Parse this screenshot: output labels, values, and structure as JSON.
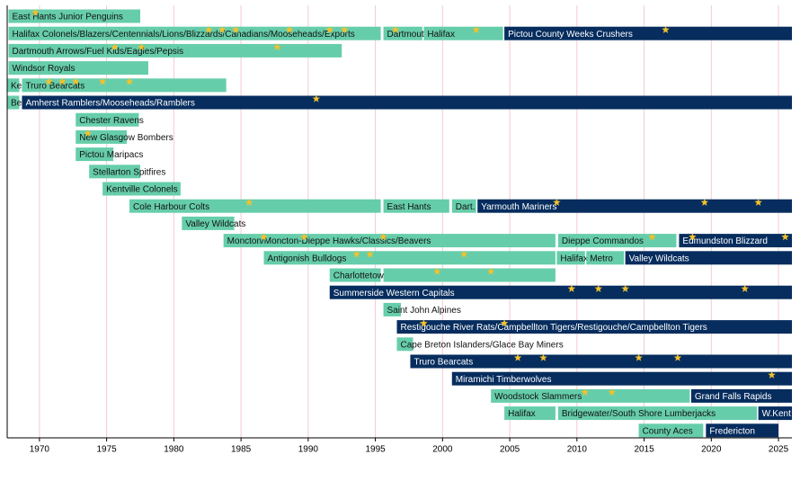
{
  "chart_data": {
    "type": "timeline",
    "xlim": [
      1967.6,
      2026
    ],
    "xticks": [
      1970,
      1975,
      1980,
      1985,
      1990,
      1995,
      2000,
      2005,
      2010,
      2015,
      2020,
      2025
    ],
    "grid": true,
    "star_color": "#f2c12e",
    "rows": [
      {
        "bars": [
          {
            "label": "East Hants Junior Penguins",
            "start": 1967.7,
            "end": 1977.5,
            "color": "#66cdaa",
            "stars": [
              1969.7
            ]
          }
        ]
      },
      {
        "bars": [
          {
            "label": "Halifax Colonels/Blazers/Centennials/Lions/Blizzards/Canadians/Mooseheads/Exports",
            "start": 1967.7,
            "end": 1995.4,
            "color": "#66cdaa",
            "stars": [
              1982.6,
              1983.6,
              1984.6,
              1988.6,
              1991.6,
              1992.7
            ]
          },
          {
            "label": "Dartmouth",
            "start": 1995.6,
            "end": 1998.5,
            "color": "#66cdaa",
            "stars": [
              1996.5
            ]
          },
          {
            "label": "Halifax",
            "start": 1998.6,
            "end": 2004.5,
            "color": "#66cdaa",
            "stars": [
              2002.5
            ]
          },
          {
            "label": "Pictou County Weeks Crushers",
            "start": 2004.6,
            "end": 2026,
            "color": "#062d5e",
            "stars": [
              2016.6
            ]
          }
        ]
      },
      {
        "bars": [
          {
            "label": "Dartmouth Arrows/Fuel Kids/Eagles/Pepsis",
            "start": 1967.7,
            "end": 1992.5,
            "color": "#66cdaa",
            "stars": [
              1975.6,
              1977.6,
              1987.7
            ]
          }
        ]
      },
      {
        "bars": [
          {
            "label": "Windsor Royals",
            "start": 1967.7,
            "end": 1978.1,
            "color": "#66cdaa",
            "stars": []
          }
        ]
      },
      {
        "bars": [
          {
            "label": "Ken.",
            "start": 1967.6,
            "end": 1968.5,
            "color": "#66cdaa",
            "stars": []
          },
          {
            "label": "Truro Bearcats",
            "start": 1968.7,
            "end": 1983.9,
            "color": "#66cdaa",
            "stars": [
              1970.7,
              1971.7,
              1972.7,
              1974.7,
              1976.7
            ]
          }
        ]
      },
      {
        "bars": [
          {
            "label": "Ber.",
            "start": 1967.6,
            "end": 1968.5,
            "color": "#66cdaa",
            "stars": []
          },
          {
            "label": "Amherst Ramblers/Mooseheads/Ramblers",
            "start": 1968.7,
            "end": 2026,
            "color": "#062d5e",
            "stars": [
              1990.6
            ]
          }
        ]
      },
      {
        "bars": [
          {
            "label": "Chester Ravens",
            "start": 1972.7,
            "end": 1977.4,
            "color": "#66cdaa",
            "stars": []
          }
        ]
      },
      {
        "bars": [
          {
            "label": "New Glasgow Bombers",
            "start": 1972.7,
            "end": 1976.5,
            "color": "#66cdaa",
            "stars": [
              1973.6
            ]
          }
        ]
      },
      {
        "bars": [
          {
            "label": "Pictou Maripacs",
            "start": 1972.7,
            "end": 1975.5,
            "color": "#66cdaa",
            "stars": []
          }
        ]
      },
      {
        "bars": [
          {
            "label": "Stellarton Spitfires",
            "start": 1973.7,
            "end": 1977.5,
            "color": "#66cdaa",
            "stars": []
          }
        ]
      },
      {
        "bars": [
          {
            "label": "Kentville Colonels",
            "start": 1974.7,
            "end": 1980.5,
            "color": "#66cdaa",
            "stars": []
          }
        ]
      },
      {
        "bars": [
          {
            "label": "Cole Harbour Colts",
            "start": 1976.7,
            "end": 1995.4,
            "color": "#66cdaa",
            "stars": [
              1985.6
            ]
          },
          {
            "label": "East Hants",
            "start": 1995.6,
            "end": 2000.5,
            "color": "#66cdaa",
            "stars": []
          },
          {
            "label": "Dart.",
            "start": 2000.7,
            "end": 2002.5,
            "color": "#66cdaa",
            "stars": []
          },
          {
            "label": "Yarmouth Mariners",
            "start": 2002.6,
            "end": 2026,
            "color": "#062d5e",
            "stars": [
              2008.5,
              2019.5,
              2023.5
            ]
          }
        ]
      },
      {
        "bars": [
          {
            "label": "Valley Wildcats",
            "start": 1980.6,
            "end": 1984.5,
            "color": "#66cdaa",
            "stars": []
          }
        ]
      },
      {
        "bars": [
          {
            "label": "Moncton/Moncton-Dieppe Hawks/Classics/Beavers",
            "start": 1983.7,
            "end": 2008.4,
            "color": "#66cdaa",
            "stars": [
              1986.7,
              1989.7,
              1995.6
            ]
          },
          {
            "label": "Dieppe Commandos",
            "start": 2008.6,
            "end": 2017.4,
            "color": "#66cdaa",
            "stars": [
              2015.6
            ]
          },
          {
            "label": "Edmundston Blizzard",
            "start": 2017.6,
            "end": 2026,
            "color": "#062d5e",
            "stars": [
              2018.6,
              2025.5
            ]
          }
        ]
      },
      {
        "bars": [
          {
            "label": "Antigonish Bulldogs",
            "start": 1986.7,
            "end": 2008.4,
            "color": "#66cdaa",
            "stars": [
              1993.6,
              1994.6,
              2001.6
            ]
          },
          {
            "label": "Halifax",
            "start": 2008.5,
            "end": 2010.6,
            "color": "#66cdaa",
            "stars": []
          },
          {
            "label": "Metro",
            "start": 2010.7,
            "end": 2013.5,
            "color": "#66cdaa",
            "stars": []
          },
          {
            "label": "Valley Wildcats",
            "start": 2013.6,
            "end": 2026,
            "color": "#062d5e",
            "stars": []
          }
        ]
      },
      {
        "bars": [
          {
            "label": "Charlottetown Abbies",
            "start": 1991.6,
            "end": 1995.4,
            "color": "#66cdaa",
            "stars": []
          },
          {
            "start": 1995.6,
            "end": 2008.4,
            "color": "#66cdaa",
            "stars": [
              1999.6,
              2003.6
            ]
          }
        ]
      },
      {
        "bars": [
          {
            "label": "Summerside Western Capitals",
            "start": 1991.6,
            "end": 2026,
            "color": "#062d5e",
            "stars": [
              2009.6,
              2011.6,
              2013.6,
              2022.5
            ]
          }
        ]
      },
      {
        "bars": [
          {
            "label": "Saint John Alpines",
            "start": 1995.6,
            "end": 1996.9,
            "color": "#66cdaa",
            "stars": []
          }
        ]
      },
      {
        "bars": [
          {
            "label": "Restigouche River Rats/Campbellton Tigers/Restigouche/Campbellton Tigers",
            "start": 1996.6,
            "end": 2026,
            "color": "#062d5e",
            "stars": [
              1998.6,
              2004.6
            ]
          }
        ]
      },
      {
        "bars": [
          {
            "label": "Cape Breton Islanders/Glace Bay Miners",
            "start": 1996.6,
            "end": 1997.8,
            "color": "#66cdaa",
            "stars": []
          }
        ]
      },
      {
        "bars": [
          {
            "label": "Truro Bearcats",
            "start": 1997.6,
            "end": 2026,
            "color": "#062d5e",
            "stars": [
              2005.6,
              2007.5,
              2014.6,
              2017.5
            ]
          }
        ]
      },
      {
        "bars": [
          {
            "label": "Miramichi Timberwolves",
            "start": 2000.7,
            "end": 2026,
            "color": "#062d5e",
            "stars": [
              2024.5
            ]
          }
        ]
      },
      {
        "bars": [
          {
            "label": "Woodstock Slammers",
            "start": 2003.6,
            "end": 2018.4,
            "color": "#66cdaa",
            "stars": [
              2010.6,
              2012.6
            ]
          },
          {
            "label": "Grand Falls Rapids",
            "start": 2018.5,
            "end": 2026,
            "color": "#062d5e",
            "stars": []
          }
        ]
      },
      {
        "bars": [
          {
            "label": "Halifax",
            "start": 2004.6,
            "end": 2008.4,
            "color": "#66cdaa",
            "stars": []
          },
          {
            "label": "Bridgewater/South Shore Lumberjacks",
            "start": 2008.6,
            "end": 2023.4,
            "color": "#66cdaa",
            "stars": []
          },
          {
            "label": "W.Kent",
            "start": 2023.5,
            "end": 2026,
            "color": "#062d5e",
            "stars": []
          }
        ]
      },
      {
        "bars": [
          {
            "label": "County Aces",
            "start": 2014.6,
            "end": 2019.4,
            "color": "#66cdaa",
            "stars": []
          },
          {
            "label": "Fredericton",
            "start": 2019.6,
            "end": 2025.0,
            "color": "#062d5e",
            "stars": []
          }
        ]
      }
    ]
  }
}
